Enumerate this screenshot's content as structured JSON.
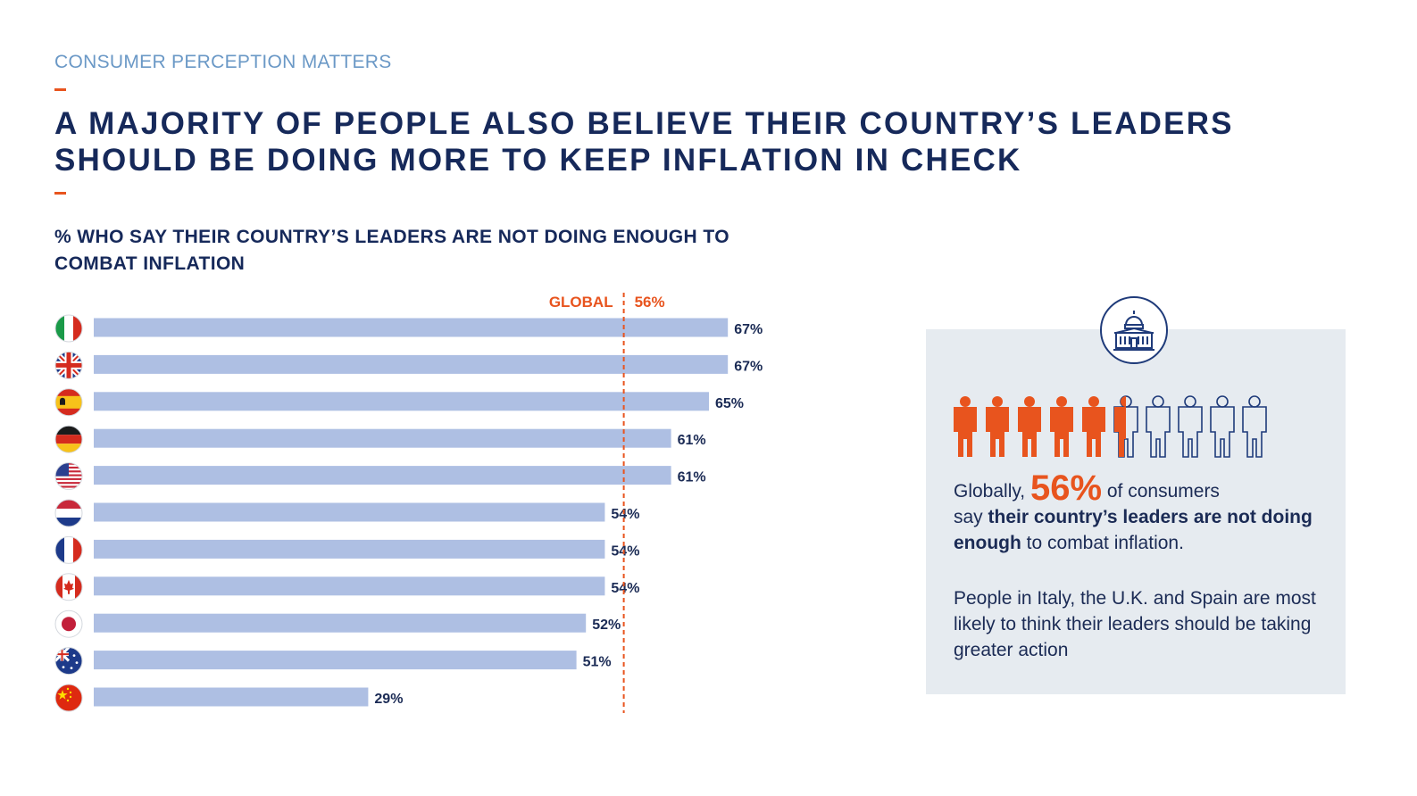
{
  "header": {
    "kicker": "CONSUMER PERCEPTION MATTERS",
    "title": "A MAJORITY OF PEOPLE ALSO BELIEVE THEIR COUNTRY’S LEADERS SHOULD BE DOING MORE TO KEEP INFLATION IN CHECK"
  },
  "chart_data": {
    "type": "bar",
    "orientation": "horizontal",
    "title": "% WHO SAY THEIR COUNTRY’S LEADERS ARE NOT DOING ENOUGH TO COMBAT INFLATION",
    "categories": [
      "Italy",
      "United Kingdom",
      "Spain",
      "Germany",
      "United States",
      "Netherlands",
      "France",
      "Canada",
      "Japan",
      "Australia",
      "China"
    ],
    "values": [
      67,
      67,
      65,
      61,
      61,
      54,
      54,
      54,
      52,
      51,
      29
    ],
    "value_labels": [
      "67%",
      "67%",
      "65%",
      "61%",
      "61%",
      "54%",
      "54%",
      "54%",
      "52%",
      "51%",
      "29%"
    ],
    "xlim": [
      0,
      100
    ],
    "reference_line": {
      "label": "GLOBAL",
      "value": 56,
      "value_label": "56%"
    },
    "grid": false,
    "colors": {
      "bar": "#aebfe3",
      "reference": "#e8541e",
      "label": "#1b2b55"
    }
  },
  "callout": {
    "prefix": "Globally, ",
    "big_value": "56%",
    "after_big": " of consumers",
    "line2_pre": "say ",
    "line2_bold": "their country’s leaders are not doing enough",
    "line2_post": " to combat inflation.",
    "paragraph2": "People in Italy, the U.K. and Spain are most likely to think their leaders should be taking greater action",
    "people_share": 0.56,
    "icon": "capitol-building-icon"
  },
  "colors": {
    "accent": "#e8541e",
    "navy": "#16295a",
    "kicker": "#6a98c6",
    "panel": "#e6ebf0"
  }
}
